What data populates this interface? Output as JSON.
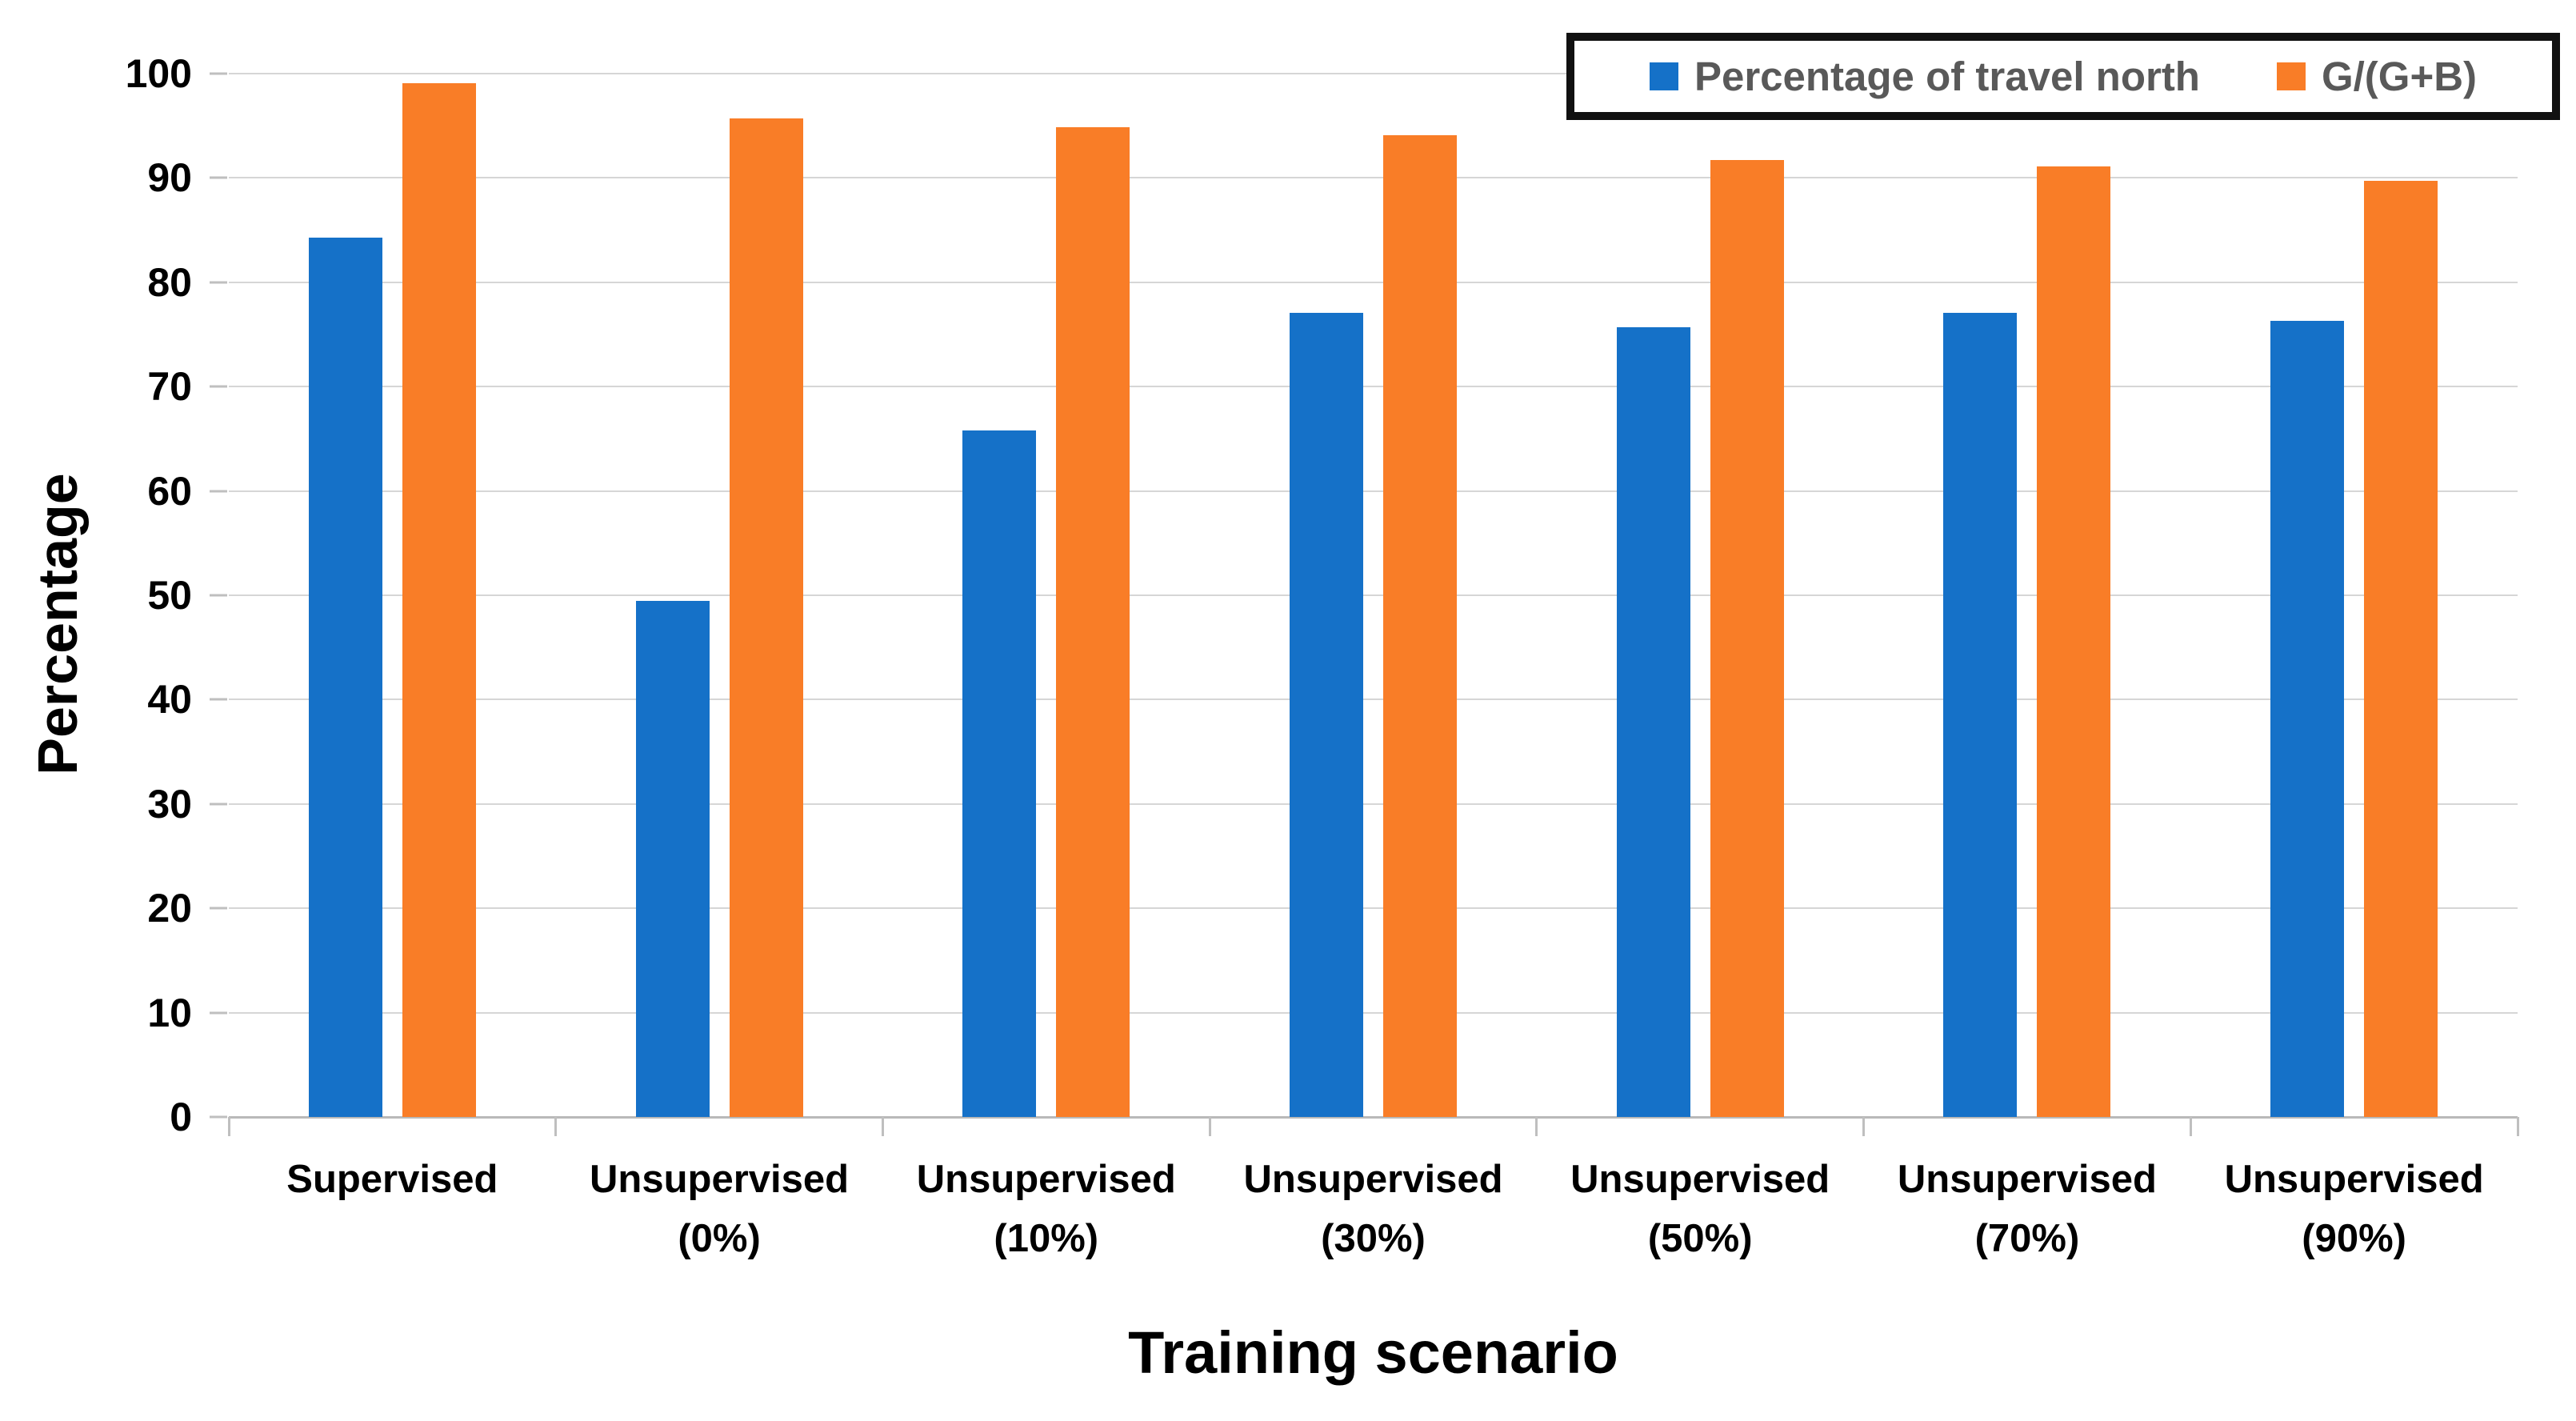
{
  "chart_data": {
    "type": "bar",
    "title": "",
    "xlabel": "Training scenario",
    "ylabel": "Percentage",
    "ylim": [
      0,
      100
    ],
    "yticks": [
      0,
      10,
      20,
      30,
      40,
      50,
      60,
      70,
      80,
      90,
      100
    ],
    "grid": true,
    "legend_position": "top-right",
    "categories": [
      "Supervised",
      "Unsupervised\n(0%)",
      "Unsupervised\n(10%)",
      "Unsupervised\n(30%)",
      "Unsupervised\n(50%)",
      "Unsupervised\n(70%)",
      "Unsupervised\n(90%)"
    ],
    "series": [
      {
        "name": "Percentage of travel north",
        "color": "#1571C8",
        "values": [
          84.3,
          49.5,
          65.8,
          77.1,
          75.7,
          77.1,
          76.3
        ]
      },
      {
        "name": "G/(G+B)",
        "color": "#F97D27",
        "values": [
          99.1,
          95.7,
          94.9,
          94.1,
          91.7,
          91.1,
          89.7
        ]
      }
    ]
  },
  "colors": {
    "gridline": "#d6d6d6",
    "axis_line": "#b9b9b9",
    "tick_mark": "#bfbfbf",
    "legend_text": "#595959",
    "legend_border": "#111111",
    "axis_text": "#000000",
    "background": "#ffffff"
  }
}
